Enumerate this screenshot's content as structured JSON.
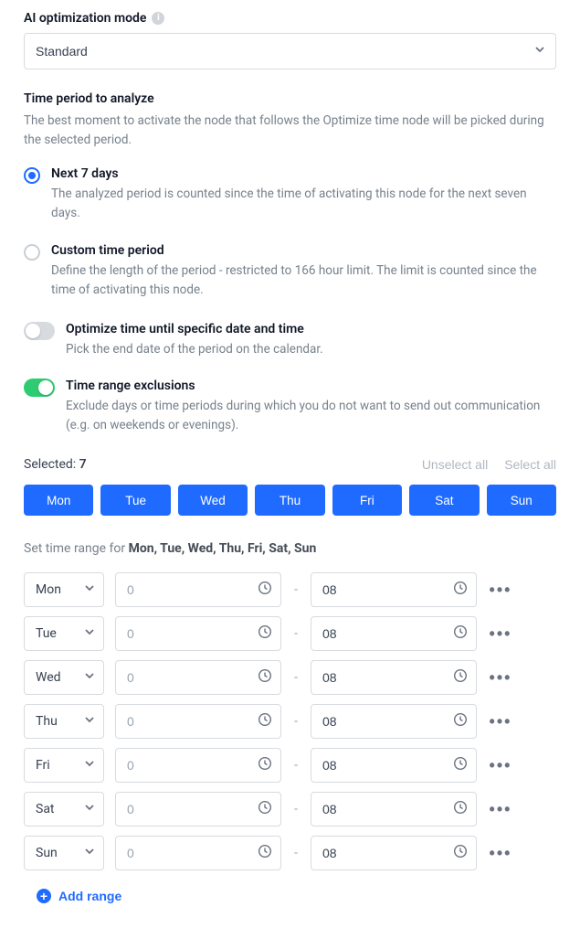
{
  "colors": {
    "primary": "#1f6bff",
    "toggle_on": "#2ecc71",
    "muted_text": "#77818c",
    "border": "#d7dbe0"
  },
  "opt_mode": {
    "label": "AI optimization mode",
    "selected": "Standard"
  },
  "period": {
    "title": "Time period to analyze",
    "desc": "The best moment to activate the node that follows the Optimize time node will be picked during the selected period.",
    "options": [
      {
        "title": "Next 7 days",
        "desc": "The analyzed period is counted since the time of activating this node for the next seven days.",
        "checked": true
      },
      {
        "title": "Custom time period",
        "desc": "Define the length of the period - restricted to 166 hour limit. The limit is counted since the time of activating this node.",
        "checked": false
      }
    ]
  },
  "toggles": [
    {
      "title": "Optimize time until specific date and time",
      "desc": "Pick the end date of the period on the calendar.",
      "on": false
    },
    {
      "title": "Time range exclusions",
      "desc": "Exclude days or time periods during which you do not want to send out communication (e.g. on weekends or evenings).",
      "on": true
    }
  ],
  "selected_row": {
    "label_prefix": "Selected: ",
    "count": "7",
    "unselect_all": "Unselect all",
    "select_all": "Select all"
  },
  "days": [
    "Mon",
    "Tue",
    "Wed",
    "Thu",
    "Fri",
    "Sat",
    "Sun"
  ],
  "range_header": {
    "prefix": "Set time range for ",
    "days_bold": "Mon, Tue, Wed, Thu, Fri, Sat, Sun"
  },
  "range_rows": [
    {
      "day": "Mon",
      "from_placeholder": "0",
      "from": "",
      "to": "08"
    },
    {
      "day": "Tue",
      "from_placeholder": "0",
      "from": "",
      "to": "08"
    },
    {
      "day": "Wed",
      "from_placeholder": "0",
      "from": "",
      "to": "08"
    },
    {
      "day": "Thu",
      "from_placeholder": "0",
      "from": "",
      "to": "08"
    },
    {
      "day": "Fri",
      "from_placeholder": "0",
      "from": "",
      "to": "08"
    },
    {
      "day": "Sat",
      "from_placeholder": "0",
      "from": "",
      "to": "08"
    },
    {
      "day": "Sun",
      "from_placeholder": "0",
      "from": "",
      "to": "08"
    }
  ],
  "add_range_label": "Add range"
}
